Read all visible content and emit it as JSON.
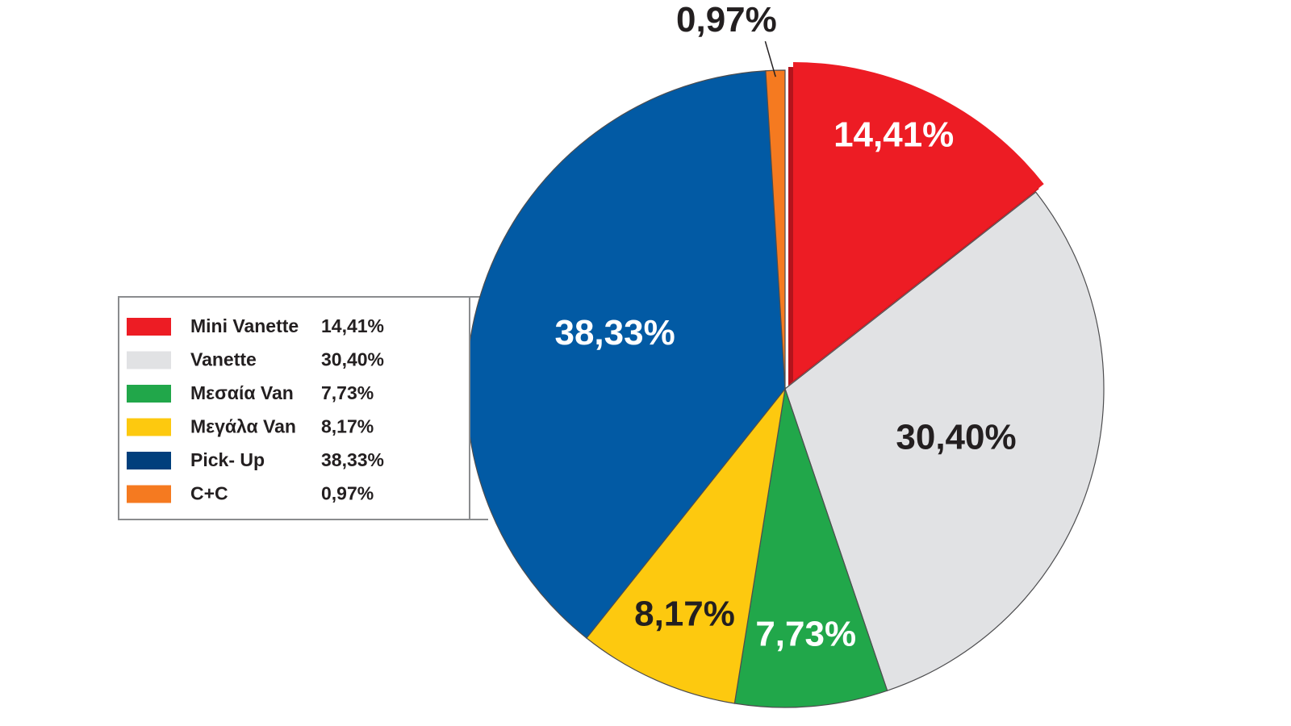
{
  "chart_data": {
    "type": "pie",
    "title": "",
    "categories": [
      "Mini Vanette",
      "Vanette",
      "Μεσαία Van",
      "Μεγάλα Van",
      "Pick- Up",
      "C+C"
    ],
    "values": [
      14.41,
      30.4,
      7.73,
      8.17,
      38.33,
      0.97
    ],
    "value_labels": [
      "14,41%",
      "30,40%",
      "7,73%",
      "8,17%",
      "38,33%",
      "0,97%"
    ],
    "colors": [
      "#ed1c24",
      "#e1e2e4",
      "#21a74a",
      "#fdc90f",
      "#025aa4",
      "#f57a20"
    ],
    "legend_colors": [
      "#ed1c24",
      "#e1e2e4",
      "#21a74a",
      "#fdc90f",
      "#003f7c",
      "#f57a20"
    ],
    "label_colors": [
      "#ffffff",
      "#231f20",
      "#ffffff",
      "#231f20",
      "#ffffff",
      "#231f20"
    ],
    "exploded_slice": "Mini Vanette",
    "legend_position": "left"
  }
}
